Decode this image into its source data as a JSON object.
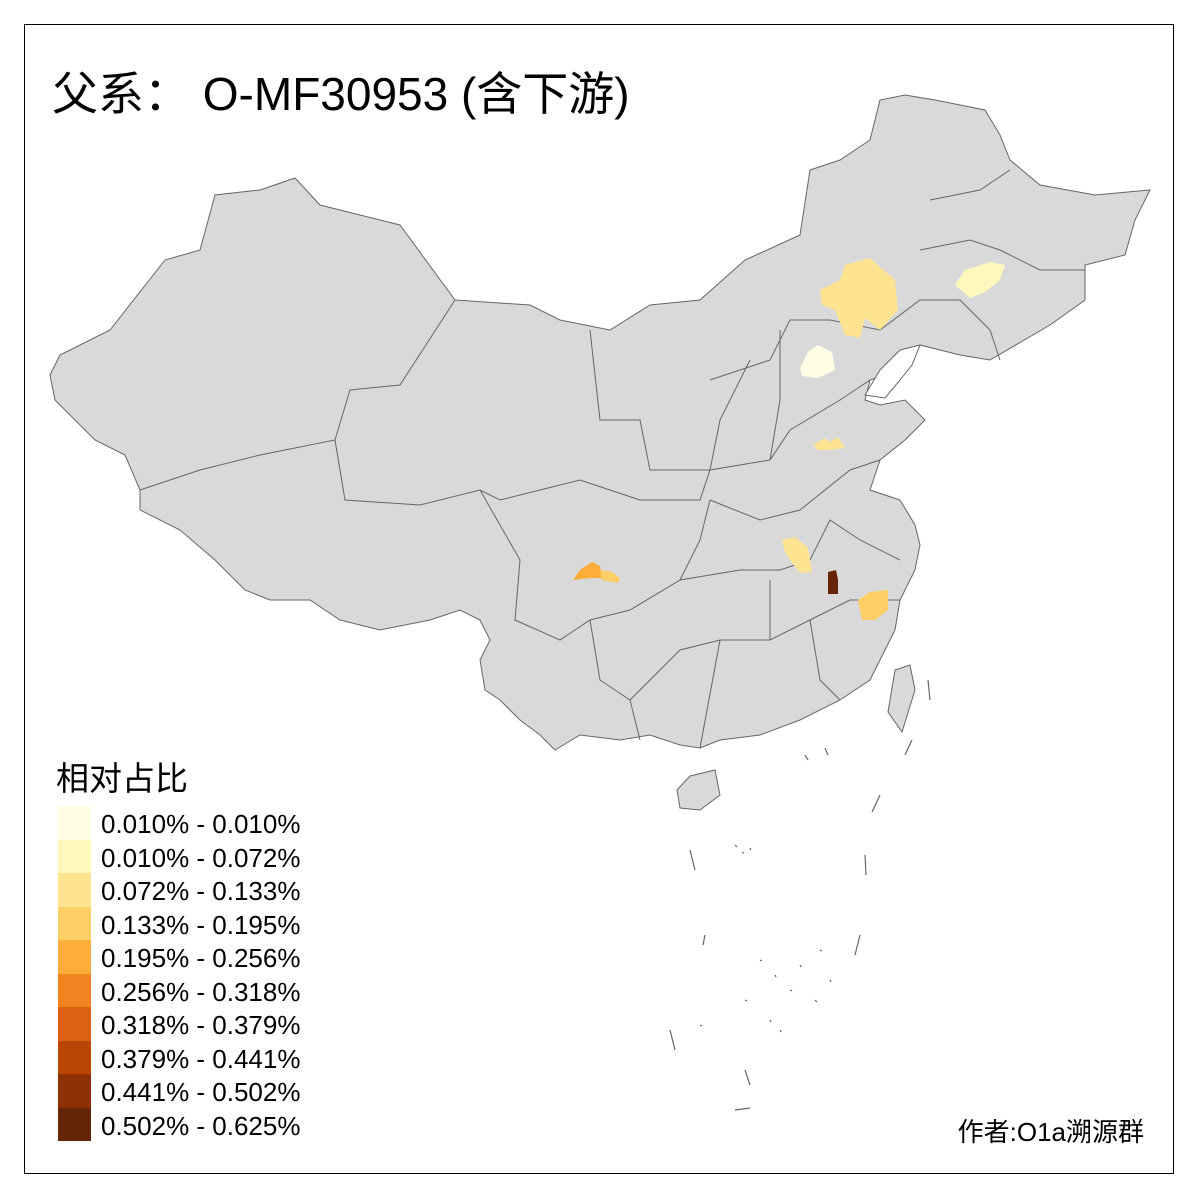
{
  "title": "父系： O-MF30953 (含下游)",
  "legend": {
    "title": "相对占比",
    "items": [
      {
        "label": "0.010% - 0.010%",
        "color": "#ffffe5"
      },
      {
        "label": "0.010% - 0.072%",
        "color": "#fff7bc"
      },
      {
        "label": "0.072% - 0.133%",
        "color": "#fee391"
      },
      {
        "label": "0.133% - 0.195%",
        "color": "#fecf66"
      },
      {
        "label": "0.195% - 0.256%",
        "color": "#feac3a"
      },
      {
        "label": "0.256% - 0.318%",
        "color": "#f3831f"
      },
      {
        "label": "0.318% - 0.379%",
        "color": "#dd6110"
      },
      {
        "label": "0.379% - 0.441%",
        "color": "#bb4503"
      },
      {
        "label": "0.441% - 0.502%",
        "color": "#8f3104"
      },
      {
        "label": "0.502% - 0.625%",
        "color": "#662506"
      }
    ]
  },
  "map": {
    "base_color": "#d9d9d9",
    "border_color": "#666666",
    "highlighted_regions": [
      {
        "region": "north-hebei",
        "bin": 2
      },
      {
        "region": "beijing",
        "bin": 0
      },
      {
        "region": "heilongjiang-south",
        "bin": 1
      },
      {
        "region": "shandong-west",
        "bin": 2
      },
      {
        "region": "anhui-west",
        "bin": 2
      },
      {
        "region": "jiangxi-north",
        "bin": 9
      },
      {
        "region": "zhejiang-south",
        "bin": 3
      },
      {
        "region": "sichuan-west",
        "bin": 4
      },
      {
        "region": "sichuan-west-2",
        "bin": 3
      }
    ]
  },
  "author": "作者:O1a溯源群"
}
